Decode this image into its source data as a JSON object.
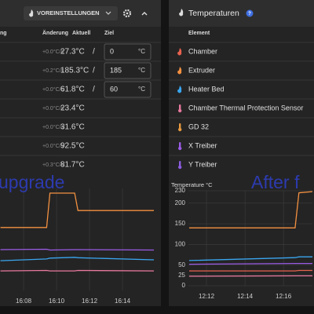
{
  "panels": {
    "left": {
      "presets_button": "VOREINSTELLUNGEN",
      "columns": [
        "ng",
        "Änderung",
        "Aktuell",
        "Ziel"
      ],
      "rows": [
        {
          "change": "+0.0°C/s",
          "current": "27.3°C",
          "separator": "/",
          "target": "0",
          "unit": "°C"
        },
        {
          "change": "+0.2°C/s",
          "current": "185.3°C",
          "separator": "/",
          "target": "185",
          "unit": "°C"
        },
        {
          "change": "+0.0°C/s",
          "current": "61.8°C",
          "separator": "/",
          "target": "60",
          "unit": "°C"
        },
        {
          "change": "+0.0°C/s",
          "current": "23.4°C"
        },
        {
          "change": "+0.0°C/s",
          "current": "31.6°C"
        },
        {
          "change": "+0.0°C/s",
          "current": "92.5°C"
        },
        {
          "change": "+0.3°C/s",
          "current": "81.7°C"
        }
      ],
      "overlay": "upgrade"
    },
    "right": {
      "title": "Temperaturen",
      "column": "Element",
      "rows": [
        {
          "name": "Chamber",
          "icon": "flame",
          "icon_color": "#e8624f"
        },
        {
          "name": "Extruder",
          "icon": "flame",
          "icon_color": "#f39040"
        },
        {
          "name": "Heater Bed",
          "icon": "flame",
          "icon_color": "#3aa6f0"
        },
        {
          "name": "Chamber Thermal Protection Sensor",
          "icon": "thermo",
          "icon_color": "#e8799e"
        },
        {
          "name": "GD 32",
          "icon": "thermo",
          "icon_color": "#e89a40"
        },
        {
          "name": "X Treiber",
          "icon": "thermo",
          "icon_color": "#9b5ce6"
        },
        {
          "name": "Y Treiber",
          "icon": "thermo",
          "icon_color": "#8c5ce0"
        }
      ],
      "overlay": "After f"
    }
  },
  "chart_data": [
    {
      "type": "line",
      "x": [
        966.6,
        969.4,
        969.6,
        971.1,
        971.3,
        975.9
      ],
      "xlim": [
        966.57,
        976.33
      ],
      "xticks": [
        {
          "value": 968,
          "label": "16:08"
        },
        {
          "value": 970,
          "label": "16:10"
        },
        {
          "value": 972,
          "label": "16:12"
        },
        {
          "value": 974,
          "label": "16:14"
        }
      ],
      "ylim": [
        0,
        240
      ],
      "grid": true,
      "series": [
        {
          "color": "#f39040",
          "values": [
            148,
            148,
            229,
            229,
            188,
            188
          ]
        },
        {
          "color": "#9b5ce6",
          "values": [
            96,
            97,
            95,
            96,
            96,
            95
          ]
        },
        {
          "color": "#3aa6f0",
          "values": [
            70,
            74,
            76,
            78,
            77,
            72
          ]
        },
        {
          "color": "#e8799e",
          "values": [
            46,
            47,
            46,
            46,
            47,
            46
          ]
        }
      ]
    },
    {
      "type": "line",
      "title": "Temperature °C",
      "x": [
        731.1,
        736.6,
        736.8,
        737.5
      ],
      "xlim": [
        731.06,
        737.5
      ],
      "xticks": [
        {
          "value": 732,
          "label": "12:12"
        },
        {
          "value": 734,
          "label": "12:14"
        },
        {
          "value": 736,
          "label": "12:16"
        }
      ],
      "ylim": [
        0,
        230
      ],
      "yticks": [
        0,
        25,
        50,
        100,
        150,
        200,
        230
      ],
      "grid": true,
      "series": [
        {
          "color": "#f39040",
          "values": [
            140,
            140,
            225,
            228
          ]
        },
        {
          "color": "#3aa6f0",
          "values": [
            61,
            68,
            70,
            70
          ]
        },
        {
          "color": "#9b5ce6",
          "values": [
            52,
            54,
            54,
            54
          ]
        },
        {
          "color": "#e8624f",
          "values": [
            36,
            36,
            37,
            37
          ]
        },
        {
          "color": "#e8799e",
          "values": [
            23,
            24,
            24,
            24
          ]
        }
      ]
    }
  ]
}
